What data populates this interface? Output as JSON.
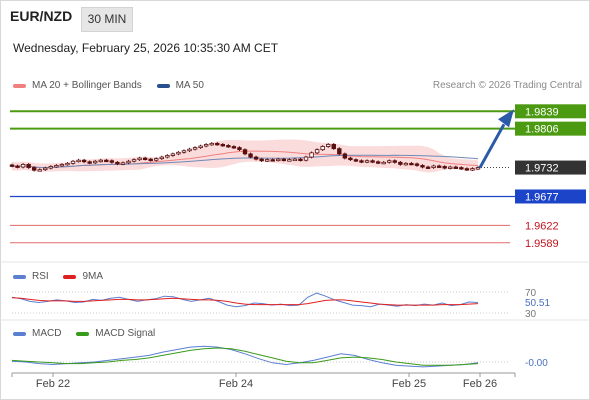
{
  "header": {
    "pair": "EUR/NZD",
    "timeframe": "30 MIN",
    "datetime": "Wednesday, February 25, 2026 10:35:30 AM CET"
  },
  "credit": "Research © 2026 Trading Central",
  "legends": {
    "main": [
      {
        "label": "MA 20 + Bollinger Bands",
        "color": "#f08080"
      },
      {
        "label": "MA 50",
        "color": "#2a4f8f"
      }
    ],
    "rsi": [
      {
        "label": "RSI",
        "color": "#5b7fd1"
      },
      {
        "label": "9MA",
        "color": "#e02020"
      }
    ],
    "macd": [
      {
        "label": "MACD",
        "color": "#5b7fd1"
      },
      {
        "label": "MACD Signal",
        "color": "#3a9a1a"
      }
    ]
  },
  "colors": {
    "resistance": "#4c9a12",
    "support": "#1c44c8",
    "support_light": "#e06a6a",
    "current": "#333333",
    "arrow": "#2a5aa8",
    "candle": "#5a0f0f",
    "bands": "#fbdcdc"
  },
  "chart_data": [
    {
      "type": "candlestick",
      "title": "EUR/NZD",
      "x_ticks": [
        "Feb 22",
        "Feb 24",
        "Feb 25",
        "Feb 26"
      ],
      "price_levels": [
        {
          "value": "1.9839",
          "kind": "resistance"
        },
        {
          "value": "1.9806",
          "kind": "resistance"
        },
        {
          "value": "1.9732",
          "kind": "current"
        },
        {
          "value": "1.9677",
          "kind": "support"
        },
        {
          "value": "1.9622",
          "kind": "support_light"
        },
        {
          "value": "1.9589",
          "kind": "support_light"
        }
      ],
      "ylim": [
        1.956,
        1.987
      ],
      "close_series": [
        1.9735,
        1.9733,
        1.9738,
        1.9732,
        1.9727,
        1.9728,
        1.9731,
        1.9734,
        1.9736,
        1.9738,
        1.974,
        1.9744,
        1.9746,
        1.9743,
        1.9741,
        1.9744,
        1.9746,
        1.9745,
        1.9742,
        1.9739,
        1.9741,
        1.9744,
        1.9747,
        1.975,
        1.9748,
        1.9746,
        1.9749,
        1.9752,
        1.9755,
        1.9758,
        1.9761,
        1.9764,
        1.9767,
        1.977,
        1.9773,
        1.9776,
        1.9778,
        1.9776,
        1.9774,
        1.9772,
        1.977,
        1.9766,
        1.9758,
        1.9752,
        1.9748,
        1.9745,
        1.9747,
        1.9746,
        1.9748,
        1.9746,
        1.9747,
        1.9748,
        1.9746,
        1.9752,
        1.976,
        1.9766,
        1.9772,
        1.9776,
        1.9768,
        1.9758,
        1.975,
        1.9747,
        1.9745,
        1.9743,
        1.9745,
        1.9743,
        1.9741,
        1.9742,
        1.9745,
        1.9742,
        1.9738,
        1.974,
        1.9739,
        1.9736,
        1.9733,
        1.9732,
        1.9735,
        1.9734,
        1.9731,
        1.9733,
        1.9732,
        1.973,
        1.9728,
        1.973,
        1.9732
      ],
      "action": "upward arrow toward 1.9839"
    },
    {
      "type": "line",
      "title": "RSI",
      "y_ticks": [
        "70",
        "30"
      ],
      "current_value": "50.51",
      "series": [
        {
          "name": "RSI",
          "values": [
            60,
            57,
            52,
            50,
            52,
            55,
            53,
            50,
            51,
            56,
            54,
            58,
            60,
            56,
            52,
            55,
            57,
            62,
            61,
            56,
            52,
            55,
            58,
            52,
            45,
            42,
            44,
            49,
            48,
            45,
            47,
            44,
            45,
            60,
            68,
            62,
            55,
            50,
            45,
            44,
            42,
            47,
            45,
            43,
            46,
            44,
            47,
            45,
            49,
            44,
            46,
            51,
            50
          ]
        },
        {
          "name": "9MA",
          "values": [
            59,
            58,
            56,
            54,
            53,
            53,
            53,
            52,
            52,
            53,
            54,
            55,
            56,
            56,
            55,
            55,
            56,
            57,
            58,
            57,
            56,
            55,
            55,
            54,
            52,
            49,
            47,
            46,
            46,
            46,
            46,
            46,
            46,
            48,
            51,
            54,
            55,
            55,
            53,
            51,
            49,
            47,
            46,
            45,
            45,
            45,
            45,
            45,
            46,
            46,
            46,
            47,
            48
          ]
        }
      ]
    },
    {
      "type": "line",
      "title": "MACD",
      "y_ticks": [
        "-0.00"
      ],
      "current_value": "-0.00",
      "series": [
        {
          "name": "MACD",
          "values": [
            0.0001,
            0.0,
            -0.0002,
            -0.0003,
            -0.0002,
            -0.0001,
            0.0,
            0.0002,
            0.0004,
            0.0006,
            0.0008,
            0.0012,
            0.0015,
            0.0018,
            0.0019,
            0.0018,
            0.0015,
            0.001,
            0.0004,
            -0.0001,
            -0.0003,
            -0.0001,
            0.0002,
            0.0006,
            0.001,
            0.0008,
            0.0003,
            -0.0001,
            -0.0004,
            -0.0005,
            -0.0006,
            -0.0005,
            -0.0004,
            -0.0003,
            -0.0001
          ]
        },
        {
          "name": "MACD Signal",
          "values": [
            0.0002,
            0.0001,
            0.0,
            -0.0001,
            -0.0002,
            -0.0002,
            -0.0001,
            0.0,
            0.0002,
            0.0003,
            0.0005,
            0.0008,
            0.0011,
            0.0014,
            0.0016,
            0.0017,
            0.0016,
            0.0013,
            0.0009,
            0.0005,
            0.0001,
            -0.0001,
            -0.0001,
            0.0002,
            0.0005,
            0.0006,
            0.0005,
            0.0003,
            0.0,
            -0.0002,
            -0.0004,
            -0.0004,
            -0.0004,
            -0.0003,
            -0.0002
          ]
        }
      ]
    }
  ]
}
